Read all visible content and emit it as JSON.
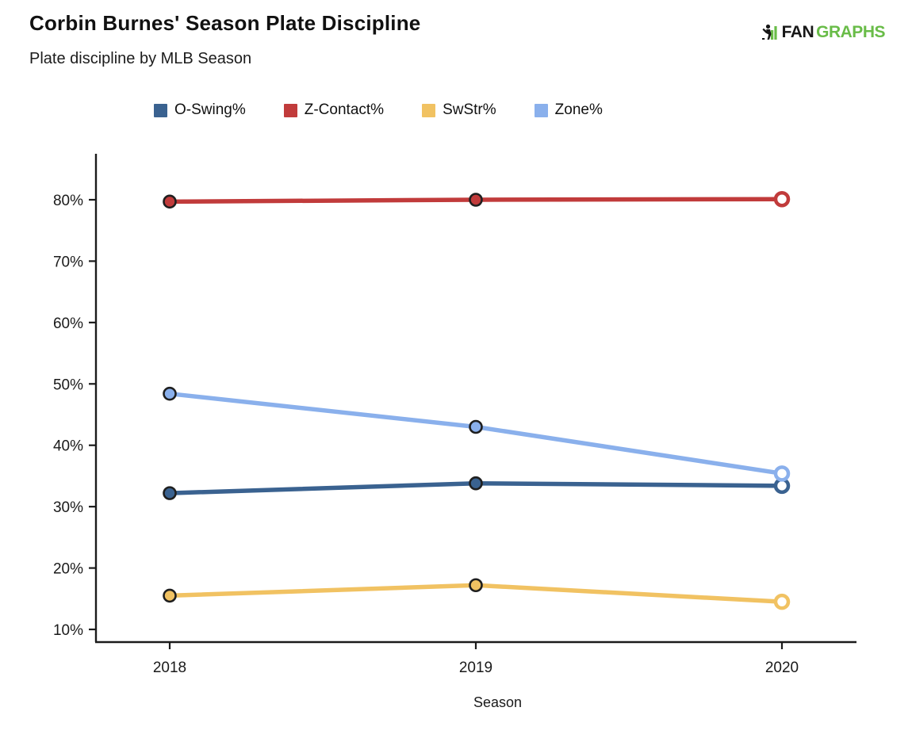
{
  "header": {
    "title": "Corbin Burnes' Season Plate Discipline",
    "subtitle": "Plate discipline by MLB Season",
    "logo": {
      "fan": "FAN",
      "graphs": "GRAPHS",
      "green": "#69BC48",
      "black": "#171717"
    }
  },
  "chart_data": {
    "type": "line",
    "title": "Corbin Burnes' Season Plate Discipline",
    "subtitle": "Plate discipline by MLB Season",
    "categories": [
      "2018",
      "2019",
      "2020"
    ],
    "series": [
      {
        "name": "O-Swing%",
        "color": "#3A6290",
        "values": [
          32.2,
          33.8,
          33.4
        ]
      },
      {
        "name": "Z-Contact%",
        "color": "#C13B3B",
        "values": [
          79.7,
          80.0,
          80.1
        ]
      },
      {
        "name": "SwStr%",
        "color": "#F1C262",
        "values": [
          15.5,
          17.2,
          14.5
        ]
      },
      {
        "name": "Zone%",
        "color": "#8AB0EC",
        "values": [
          48.4,
          43.0,
          35.4
        ]
      }
    ],
    "xlabel": "Season",
    "ylabel": "",
    "y_ticks": [
      10,
      20,
      30,
      40,
      50,
      60,
      70,
      80
    ],
    "y_tick_suffix": "%",
    "ylim": [
      10,
      80
    ],
    "grid": false,
    "legend_position": "top",
    "open_marker_category": "2020",
    "axis_color": "#1b1b1b",
    "marker_outline_color": "#1f1f1f"
  }
}
